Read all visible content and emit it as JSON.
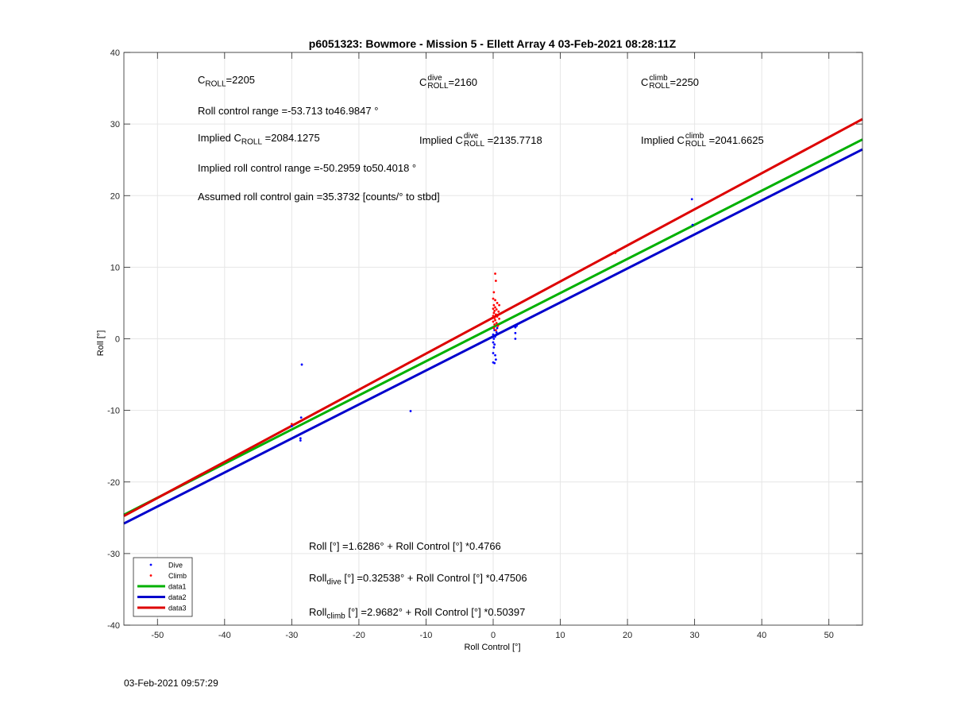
{
  "chart_data": {
    "type": "scatter",
    "title": "p6051323: Bowmore - Mission 5 - Ellett Array 4 03-Feb-2021 08:28:11Z",
    "xlabel": "Roll Control [°]",
    "ylabel": "Roll [°]",
    "xlim": [
      -55,
      55
    ],
    "ylim": [
      -40,
      40
    ],
    "xticks": [
      -50,
      -40,
      -30,
      -20,
      -10,
      0,
      10,
      20,
      30,
      40,
      50
    ],
    "yticks": [
      -40,
      -30,
      -20,
      -10,
      0,
      10,
      20,
      30,
      40
    ],
    "grid": true,
    "legend_position": "bottom-left",
    "legend": [
      "Dive",
      "Climb",
      "data1",
      "data2",
      "data3"
    ],
    "series": [
      {
        "name": "Dive",
        "kind": "points",
        "color": "#0000ff",
        "points": [
          [
            -28.5,
            -3.6
          ],
          [
            -28.6,
            -11.0
          ],
          [
            -28.7,
            -13.9
          ],
          [
            -28.7,
            -14.2
          ],
          [
            -30.0,
            -12.2
          ],
          [
            -12.3,
            -10.1
          ],
          [
            0.0,
            -3.3
          ],
          [
            0.2,
            -3.4
          ],
          [
            0.4,
            -2.9
          ],
          [
            0.0,
            -2.0
          ],
          [
            0.3,
            -2.3
          ],
          [
            0.1,
            -1.2
          ],
          [
            0.2,
            -0.8
          ],
          [
            0.0,
            -0.5
          ],
          [
            0.1,
            0.0
          ],
          [
            0.3,
            0.3
          ],
          [
            0.0,
            0.6
          ],
          [
            0.5,
            0.9
          ],
          [
            0.2,
            1.2
          ],
          [
            0.6,
            1.5
          ],
          [
            3.3,
            0.0
          ],
          [
            3.3,
            0.8
          ],
          [
            3.3,
            1.6
          ],
          [
            3.5,
            1.8
          ],
          [
            29.6,
            19.5
          ],
          [
            29.7,
            15.9
          ]
        ]
      },
      {
        "name": "Climb",
        "kind": "points",
        "color": "#ff0000",
        "points": [
          [
            0.3,
            9.1
          ],
          [
            0.4,
            8.1
          ],
          [
            0.1,
            6.5
          ],
          [
            0.0,
            5.6
          ],
          [
            0.3,
            5.4
          ],
          [
            0.6,
            5.0
          ],
          [
            0.9,
            4.7
          ],
          [
            0.1,
            4.7
          ],
          [
            0.3,
            4.4
          ],
          [
            0.0,
            4.2
          ],
          [
            0.5,
            4.1
          ],
          [
            0.2,
            3.9
          ],
          [
            0.8,
            3.8
          ],
          [
            0.1,
            3.6
          ],
          [
            0.4,
            3.4
          ],
          [
            0.0,
            3.2
          ],
          [
            0.6,
            3.1
          ],
          [
            0.2,
            2.9
          ],
          [
            0.9,
            2.8
          ],
          [
            0.3,
            2.6
          ],
          [
            0.0,
            2.4
          ],
          [
            0.5,
            2.2
          ],
          [
            0.2,
            2.0
          ],
          [
            0.7,
            1.8
          ],
          [
            0.1,
            1.5
          ],
          [
            0.4,
            1.2
          ],
          [
            -30.0,
            -11.9
          ],
          [
            18.2,
            12.0
          ]
        ]
      },
      {
        "name": "data1",
        "kind": "line",
        "color": "#00b000",
        "intercept": 1.6286,
        "slope": 0.4766
      },
      {
        "name": "data2",
        "kind": "line",
        "color": "#0000cc",
        "intercept": 0.32538,
        "slope": 0.47506
      },
      {
        "name": "data3",
        "kind": "line",
        "color": "#dd0000",
        "intercept": 2.9682,
        "slope": 0.50397
      }
    ]
  },
  "annotations": {
    "croll": {
      "c": "C",
      "sub": "ROLL",
      "value": "=2205"
    },
    "croll_dive": {
      "c": "C",
      "sup": "dive",
      "sub": "ROLL",
      "value": "=2160"
    },
    "croll_climb": {
      "c": "C",
      "sup": "climb",
      "sub": "ROLL",
      "value": "=2250"
    },
    "roll_range": "Roll control range =-53.713 to46.9847 °",
    "implied_croll": {
      "prefix": "Implied C",
      "sub": "ROLL",
      "value": " =2084.1275"
    },
    "implied_croll_dive": {
      "prefix": "Implied C",
      "sup": "dive",
      "sub": "ROLL",
      "value": " =2135.7718"
    },
    "implied_croll_climb": {
      "prefix": "Implied C",
      "sup": "climb",
      "sub": "ROLL",
      "value": " =2041.6625"
    },
    "implied_range": "Implied roll control range =-50.2959 to50.4018 °",
    "gain": "Assumed roll control gain =35.3732 [counts/° to stbd]",
    "eq_all": "Roll [°] =1.6286° + Roll Control [°] *0.4766",
    "eq_dive": {
      "prefix": "Roll",
      "sub": "dive",
      "rest": " [°] =0.32538° + Roll Control [°] *0.47506"
    },
    "eq_climb": {
      "prefix": "Roll",
      "sub": "climb",
      "rest": " [°] =2.9682° + Roll Control [°] *0.50397"
    }
  },
  "footer": "03-Feb-2021 09:57:29"
}
